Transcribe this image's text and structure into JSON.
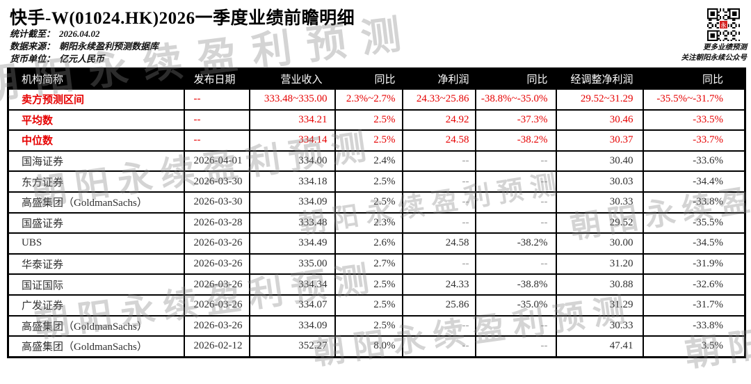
{
  "page": {
    "title": "快手-W(01024.HK)2026一季度业绩前瞻明细",
    "meta": [
      {
        "label": "统计截至：",
        "value": "2026.04.02"
      },
      {
        "label": "数据来源：",
        "value": "朝阳永续盈利预测数据库"
      },
      {
        "label": "货币单位：",
        "value": "亿元人民币"
      }
    ],
    "qr_caption_line1": "更多业绩预测",
    "qr_caption_line2": "关注朝阳永续公众号"
  },
  "colors": {
    "accent_red": "#e60000",
    "header_bg": "#000000",
    "header_text": "#ffffff",
    "watermark_gray": "rgba(128,128,128,0.34)",
    "qr_center_red": "#d42322"
  },
  "watermark_text": "朝阳永续盈利预测",
  "table": {
    "columns": [
      "机构简称",
      "发布日期",
      "营业收入",
      "同比",
      "净利润",
      "同比",
      "经调整净利润",
      "同比"
    ],
    "column_keys": [
      "institution",
      "publish-date",
      "revenue",
      "revenue-yoy",
      "net-profit",
      "net-profit-yoy",
      "adj-net-profit",
      "adj-net-profit-yoy"
    ],
    "rows": [
      {
        "highlight": true,
        "cells": [
          "卖方预测区间",
          "--",
          "333.48~335.00",
          "2.3%~2.7%",
          "24.33~25.86",
          "-38.8%~-35.0%",
          "29.52~31.29",
          "-35.5%~-31.7%"
        ]
      },
      {
        "highlight": true,
        "cells": [
          "平均数",
          "--",
          "334.21",
          "2.5%",
          "24.92",
          "-37.3%",
          "30.46",
          "-33.5%"
        ]
      },
      {
        "highlight": true,
        "cells": [
          "中位数",
          "--",
          "334.14",
          "2.5%",
          "24.58",
          "-38.2%",
          "30.37",
          "-33.7%"
        ]
      },
      {
        "highlight": false,
        "cells": [
          "国海证券",
          "2026-04-01",
          "334.00",
          "2.4%",
          "--",
          "--",
          "30.40",
          "-33.6%"
        ]
      },
      {
        "highlight": false,
        "cells": [
          "东方证券",
          "2026-03-30",
          "334.18",
          "2.5%",
          "--",
          "--",
          "30.03",
          "-34.4%"
        ]
      },
      {
        "highlight": false,
        "cells": [
          "高盛集团（GoldmanSachs）",
          "2026-03-30",
          "334.09",
          "2.5%",
          "--",
          "--",
          "30.33",
          "-33.8%"
        ]
      },
      {
        "highlight": false,
        "cells": [
          "国盛证券",
          "2026-03-28",
          "333.48",
          "2.3%",
          "--",
          "--",
          "29.52",
          "-35.5%"
        ]
      },
      {
        "highlight": false,
        "cells": [
          "UBS",
          "2026-03-26",
          "334.49",
          "2.6%",
          "24.58",
          "-38.2%",
          "30.00",
          "-34.5%"
        ]
      },
      {
        "highlight": false,
        "cells": [
          "华泰证券",
          "2026-03-26",
          "335.00",
          "2.7%",
          "--",
          "--",
          "31.20",
          "-31.9%"
        ]
      },
      {
        "highlight": false,
        "cells": [
          "国证国际",
          "2026-03-26",
          "334.34",
          "2.5%",
          "24.33",
          "-38.8%",
          "30.88",
          "-32.6%"
        ]
      },
      {
        "highlight": false,
        "cells": [
          "广发证券",
          "2026-03-26",
          "334.07",
          "2.5%",
          "25.86",
          "-35.0%",
          "31.29",
          "-31.7%"
        ]
      },
      {
        "highlight": false,
        "cells": [
          "高盛集团（GoldmanSachs）",
          "2026-03-26",
          "334.09",
          "2.5%",
          "--",
          "--",
          "30.33",
          "-33.8%"
        ]
      },
      {
        "highlight": false,
        "cells": [
          "高盛集团（GoldmanSachs）",
          "2026-02-12",
          "352.27",
          "8.0%",
          "--",
          "--",
          "47.41",
          "3.5%"
        ]
      }
    ]
  }
}
